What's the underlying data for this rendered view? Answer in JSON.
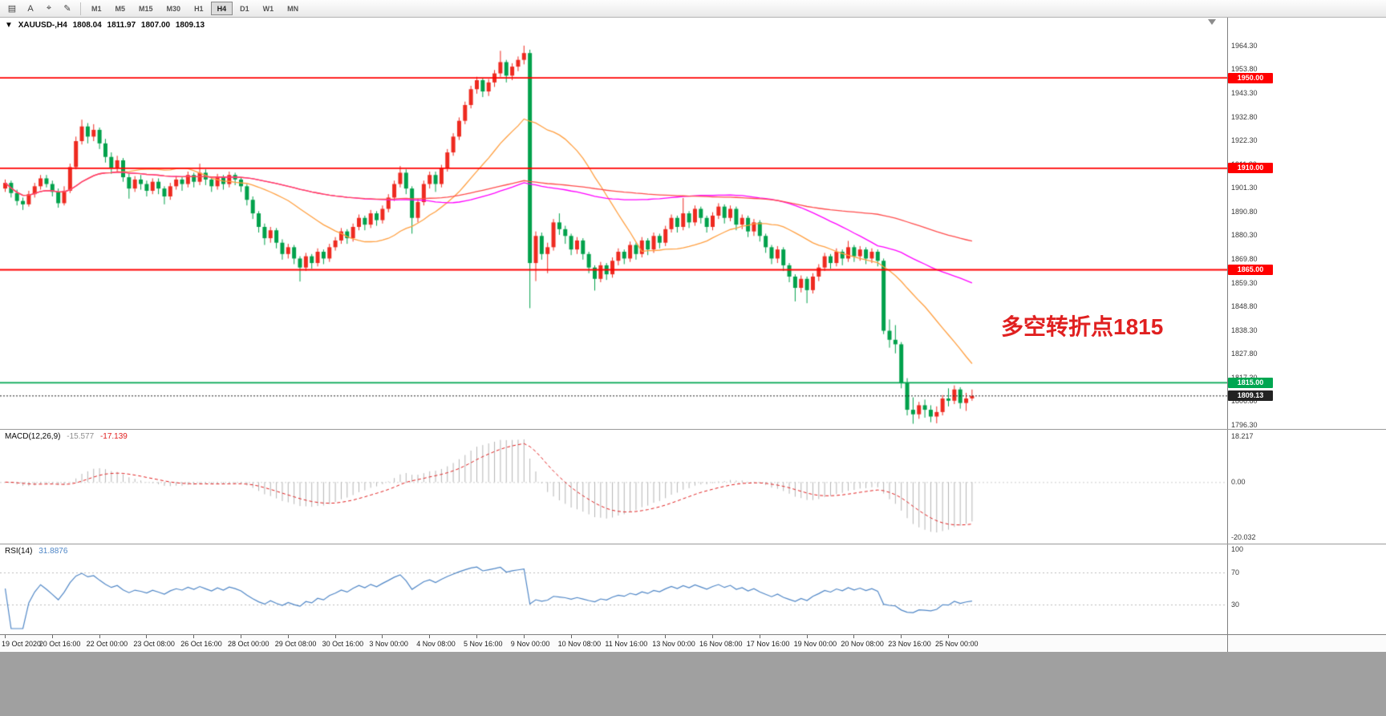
{
  "toolbar": {
    "tools": [
      {
        "name": "chart-window-icon",
        "glyph": "▤"
      },
      {
        "name": "text-label-tool",
        "glyph": "A"
      },
      {
        "name": "crosshair-tool",
        "glyph": "⌖"
      },
      {
        "name": "draw-tool",
        "glyph": "✎"
      }
    ],
    "timeframes": [
      "M1",
      "M5",
      "M15",
      "M30",
      "H1",
      "H4",
      "D1",
      "W1",
      "MN"
    ],
    "active_timeframe": "H4"
  },
  "symbol_header": {
    "toggle_glyph": "▼",
    "symbol": "XAUUSD-,H4",
    "open": "1808.04",
    "high": "1811.97",
    "low": "1807.00",
    "close": "1809.13"
  },
  "annotation": {
    "text": "多空转折点1815",
    "color": "#e02020"
  },
  "macd_panel": {
    "label": "MACD(12,26,9)",
    "main_value": "-15.577",
    "signal_value": "-17.139",
    "ticks": [
      "18.217",
      "0.00",
      "-20.032"
    ],
    "main_color": "#b4b4b4",
    "signal_color": "#e02020"
  },
  "rsi_panel": {
    "label": "RSI(14)",
    "value": "31.8876",
    "ticks": [
      100,
      70,
      30
    ],
    "levels": [
      70,
      30
    ],
    "line_color": "#4f86c6"
  },
  "time_axis": {
    "labels": [
      "19 Oct 2020",
      "20 Oct 16:00",
      "22 Oct 00:00",
      "23 Oct 08:00",
      "26 Oct 16:00",
      "28 Oct 00:00",
      "29 Oct 08:00",
      "30 Oct 16:00",
      "3 Nov 00:00",
      "4 Nov 08:00",
      "5 Nov 16:00",
      "9 Nov 00:00",
      "10 Nov 08:00",
      "11 Nov 16:00",
      "13 Nov 00:00",
      "16 Nov 08:00",
      "17 Nov 16:00",
      "19 Nov 00:00",
      "20 Nov 08:00",
      "23 Nov 16:00",
      "25 Nov 00:00"
    ]
  },
  "chart_data": {
    "type": "candlestick",
    "symbol": "XAUUSD-",
    "timeframe": "H4",
    "title": "XAUUSD-,H4 1808.04 1811.97 1807.00 1809.13",
    "price_range": [
      1794.5,
      1976.7
    ],
    "y_ticks": [
      1964.3,
      1953.8,
      1943.3,
      1932.8,
      1922.3,
      1911.8,
      1901.3,
      1890.8,
      1880.3,
      1869.8,
      1859.3,
      1848.8,
      1838.3,
      1827.8,
      1817.3,
      1806.8,
      1796.3
    ],
    "hlines": [
      {
        "price": 1950.0,
        "label": "1950.00",
        "color": "#ff0000"
      },
      {
        "price": 1910.0,
        "label": "1910.00",
        "color": "#ff0000"
      },
      {
        "price": 1865.0,
        "label": "1865.00",
        "color": "#ff0000"
      },
      {
        "price": 1815.0,
        "label": "1815.00",
        "color": "#00a651"
      }
    ],
    "bid": {
      "price": 1809.13,
      "label": "1809.13",
      "color": "#222222"
    },
    "colors": {
      "bull": "#ee2a20",
      "bear": "#00a14b"
    },
    "moving_averages": [
      {
        "period": 20,
        "color": "#ff9f40"
      },
      {
        "period": 60,
        "color": "#ff00ff"
      },
      {
        "period": 120,
        "color": "#ff4d4d"
      }
    ],
    "macd": {
      "fast": 12,
      "slow": 26,
      "signal": 9
    },
    "rsi": {
      "period": 14
    },
    "layout": {
      "x_start": 6,
      "x_step": 7.35,
      "x_label_step": 8,
      "legend_position": "none",
      "grid": false
    },
    "candles": [
      [
        1901.0,
        1905.0,
        1899.5,
        1903.5
      ],
      [
        1903.5,
        1904.5,
        1897.0,
        1899.0
      ],
      [
        1899.0,
        1900.5,
        1893.5,
        1895.5
      ],
      [
        1895.5,
        1897.0,
        1891.5,
        1894.0
      ],
      [
        1894.0,
        1900.0,
        1893.0,
        1898.5
      ],
      [
        1898.5,
        1903.5,
        1897.0,
        1902.0
      ],
      [
        1902.0,
        1907.0,
        1900.5,
        1905.5
      ],
      [
        1905.5,
        1907.0,
        1901.5,
        1903.0
      ],
      [
        1903.0,
        1904.5,
        1897.5,
        1899.5
      ],
      [
        1899.5,
        1901.0,
        1892.5,
        1894.5
      ],
      [
        1894.5,
        1902.0,
        1893.5,
        1900.0
      ],
      [
        1900.0,
        1912.0,
        1899.0,
        1910.5
      ],
      [
        1910.5,
        1924.0,
        1909.5,
        1922.0
      ],
      [
        1922.0,
        1931.5,
        1920.5,
        1928.5
      ],
      [
        1928.5,
        1930.0,
        1921.0,
        1924.0
      ],
      [
        1924.0,
        1929.5,
        1922.0,
        1927.0
      ],
      [
        1927.0,
        1928.0,
        1918.5,
        1921.0
      ],
      [
        1921.0,
        1923.0,
        1912.5,
        1915.0
      ],
      [
        1915.0,
        1917.0,
        1907.5,
        1910.0
      ],
      [
        1910.0,
        1915.5,
        1908.5,
        1913.5
      ],
      [
        1913.5,
        1914.5,
        1904.0,
        1906.0
      ],
      [
        1906.0,
        1907.5,
        1896.5,
        1901.0
      ],
      [
        1901.0,
        1906.5,
        1899.5,
        1905.0
      ],
      [
        1905.0,
        1907.0,
        1900.5,
        1903.0
      ],
      [
        1903.0,
        1904.5,
        1897.5,
        1900.0
      ],
      [
        1900.0,
        1905.5,
        1898.5,
        1904.0
      ],
      [
        1904.0,
        1905.5,
        1898.5,
        1901.0
      ],
      [
        1901.0,
        1902.0,
        1894.0,
        1897.5
      ],
      [
        1897.5,
        1903.5,
        1896.0,
        1902.0
      ],
      [
        1902.0,
        1906.5,
        1900.5,
        1905.0
      ],
      [
        1905.0,
        1906.0,
        1900.0,
        1903.0
      ],
      [
        1903.0,
        1908.5,
        1901.5,
        1907.0
      ],
      [
        1907.0,
        1908.0,
        1901.5,
        1904.0
      ],
      [
        1904.0,
        1912.0,
        1902.5,
        1908.0
      ],
      [
        1908.0,
        1909.5,
        1902.5,
        1905.0
      ],
      [
        1905.0,
        1906.0,
        1899.5,
        1902.0
      ],
      [
        1902.0,
        1907.5,
        1900.5,
        1906.0
      ],
      [
        1906.0,
        1907.0,
        1900.5,
        1903.0
      ],
      [
        1903.0,
        1908.5,
        1901.5,
        1907.0
      ],
      [
        1907.0,
        1908.0,
        1902.5,
        1905.0
      ],
      [
        1905.0,
        1906.0,
        1899.5,
        1902.0
      ],
      [
        1902.0,
        1903.0,
        1893.5,
        1896.0
      ],
      [
        1896.0,
        1897.5,
        1887.5,
        1890.0
      ],
      [
        1890.0,
        1891.0,
        1881.5,
        1884.0
      ],
      [
        1884.0,
        1885.5,
        1876.0,
        1879.0
      ],
      [
        1879.0,
        1884.0,
        1877.0,
        1882.5
      ],
      [
        1882.5,
        1883.5,
        1874.5,
        1877.0
      ],
      [
        1877.0,
        1878.5,
        1869.5,
        1872.0
      ],
      [
        1872.0,
        1876.5,
        1870.0,
        1875.0
      ],
      [
        1875.0,
        1876.0,
        1867.5,
        1870.0
      ],
      [
        1870.0,
        1871.0,
        1859.8,
        1866.0
      ],
      [
        1866.0,
        1872.5,
        1864.5,
        1871.0
      ],
      [
        1871.0,
        1872.0,
        1865.5,
        1868.0
      ],
      [
        1868.0,
        1874.5,
        1866.5,
        1873.0
      ],
      [
        1873.0,
        1874.0,
        1867.5,
        1870.0
      ],
      [
        1870.0,
        1876.5,
        1868.5,
        1875.0
      ],
      [
        1875.0,
        1879.5,
        1873.5,
        1878.0
      ],
      [
        1878.0,
        1883.5,
        1876.5,
        1882.0
      ],
      [
        1882.0,
        1883.0,
        1876.5,
        1879.0
      ],
      [
        1879.0,
        1885.5,
        1877.5,
        1884.0
      ],
      [
        1884.0,
        1889.5,
        1882.5,
        1888.0
      ],
      [
        1888.0,
        1889.0,
        1882.5,
        1885.0
      ],
      [
        1885.0,
        1891.5,
        1883.5,
        1890.0
      ],
      [
        1890.0,
        1891.0,
        1884.5,
        1887.0
      ],
      [
        1887.0,
        1893.5,
        1885.5,
        1892.0
      ],
      [
        1892.0,
        1898.5,
        1890.5,
        1897.0
      ],
      [
        1897.0,
        1904.5,
        1895.5,
        1903.0
      ],
      [
        1903.0,
        1911.0,
        1901.5,
        1908.0
      ],
      [
        1908.0,
        1909.5,
        1898.5,
        1901.0
      ],
      [
        1901.0,
        1902.0,
        1881.0,
        1888.0
      ],
      [
        1888.0,
        1896.5,
        1886.0,
        1895.0
      ],
      [
        1895.0,
        1904.5,
        1893.5,
        1903.0
      ],
      [
        1903.0,
        1908.5,
        1901.0,
        1907.0
      ],
      [
        1907.0,
        1908.5,
        1899.5,
        1903.0
      ],
      [
        1903.0,
        1911.5,
        1901.5,
        1910.0
      ],
      [
        1910.0,
        1918.5,
        1908.5,
        1917.0
      ],
      [
        1917.0,
        1925.5,
        1915.5,
        1924.0
      ],
      [
        1924.0,
        1932.5,
        1922.5,
        1931.0
      ],
      [
        1931.0,
        1939.5,
        1929.5,
        1938.0
      ],
      [
        1938.0,
        1946.5,
        1936.5,
        1945.0
      ],
      [
        1945.0,
        1950.5,
        1943.0,
        1949.0
      ],
      [
        1949.0,
        1950.0,
        1941.5,
        1944.0
      ],
      [
        1944.0,
        1949.5,
        1942.0,
        1948.0
      ],
      [
        1948.0,
        1953.5,
        1946.0,
        1952.0
      ],
      [
        1952.0,
        1962.0,
        1950.5,
        1957.0
      ],
      [
        1957.0,
        1958.0,
        1948.0,
        1951.0
      ],
      [
        1951.0,
        1956.5,
        1949.0,
        1955.0
      ],
      [
        1955.0,
        1959.5,
        1953.0,
        1958.0
      ],
      [
        1958.0,
        1964.3,
        1956.0,
        1961.0
      ],
      [
        1961.0,
        1962.5,
        1848.0,
        1868.0
      ],
      [
        1868.0,
        1882.0,
        1860.0,
        1880.0
      ],
      [
        1880.0,
        1881.5,
        1869.5,
        1872.0
      ],
      [
        1872.0,
        1877.0,
        1863.5,
        1875.0
      ],
      [
        1875.0,
        1887.5,
        1873.5,
        1886.0
      ],
      [
        1886.0,
        1890.0,
        1880.5,
        1883.0
      ],
      [
        1883.0,
        1884.5,
        1876.5,
        1880.0
      ],
      [
        1880.0,
        1881.0,
        1871.5,
        1874.0
      ],
      [
        1874.0,
        1879.5,
        1872.0,
        1878.0
      ],
      [
        1878.0,
        1879.0,
        1869.5,
        1872.0
      ],
      [
        1872.0,
        1873.0,
        1863.5,
        1866.0
      ],
      [
        1866.0,
        1867.0,
        1855.8,
        1861.0
      ],
      [
        1861.0,
        1868.5,
        1859.5,
        1867.0
      ],
      [
        1867.0,
        1868.0,
        1860.5,
        1863.0
      ],
      [
        1863.0,
        1870.5,
        1861.5,
        1869.0
      ],
      [
        1869.0,
        1874.5,
        1867.0,
        1873.0
      ],
      [
        1873.0,
        1874.0,
        1867.5,
        1870.0
      ],
      [
        1870.0,
        1877.5,
        1868.5,
        1876.0
      ],
      [
        1876.0,
        1877.0,
        1869.5,
        1872.0
      ],
      [
        1872.0,
        1879.5,
        1870.5,
        1878.0
      ],
      [
        1878.0,
        1879.0,
        1871.5,
        1874.0
      ],
      [
        1874.0,
        1881.5,
        1872.5,
        1880.0
      ],
      [
        1880.0,
        1881.0,
        1874.5,
        1877.0
      ],
      [
        1877.0,
        1884.5,
        1875.5,
        1883.0
      ],
      [
        1883.0,
        1889.5,
        1881.5,
        1888.0
      ],
      [
        1888.0,
        1889.0,
        1881.5,
        1884.0
      ],
      [
        1884.0,
        1896.8,
        1882.5,
        1890.0
      ],
      [
        1890.0,
        1891.0,
        1883.5,
        1886.0
      ],
      [
        1886.0,
        1893.5,
        1884.5,
        1892.0
      ],
      [
        1892.0,
        1893.0,
        1885.5,
        1888.0
      ],
      [
        1888.0,
        1889.0,
        1881.5,
        1884.0
      ],
      [
        1884.0,
        1890.5,
        1882.5,
        1889.0
      ],
      [
        1889.0,
        1894.5,
        1887.5,
        1893.0
      ],
      [
        1893.0,
        1894.0,
        1885.5,
        1888.0
      ],
      [
        1888.0,
        1893.5,
        1886.5,
        1892.0
      ],
      [
        1892.0,
        1893.0,
        1882.5,
        1885.0
      ],
      [
        1885.0,
        1889.5,
        1883.0,
        1888.0
      ],
      [
        1888.0,
        1889.0,
        1879.5,
        1882.0
      ],
      [
        1882.0,
        1887.5,
        1880.0,
        1886.0
      ],
      [
        1886.0,
        1887.0,
        1877.5,
        1880.0
      ],
      [
        1880.0,
        1881.0,
        1872.5,
        1875.0
      ],
      [
        1875.0,
        1876.0,
        1867.5,
        1870.0
      ],
      [
        1870.0,
        1875.5,
        1868.0,
        1874.0
      ],
      [
        1874.0,
        1875.0,
        1864.5,
        1867.0
      ],
      [
        1867.0,
        1868.0,
        1859.5,
        1862.0
      ],
      [
        1862.0,
        1863.0,
        1851.0,
        1857.0
      ],
      [
        1857.0,
        1862.5,
        1855.0,
        1861.0
      ],
      [
        1861.0,
        1862.0,
        1850.2,
        1856.0
      ],
      [
        1856.0,
        1863.5,
        1854.5,
        1862.0
      ],
      [
        1862.0,
        1867.5,
        1860.0,
        1866.0
      ],
      [
        1866.0,
        1872.5,
        1864.5,
        1871.0
      ],
      [
        1871.0,
        1872.0,
        1865.5,
        1868.0
      ],
      [
        1868.0,
        1874.5,
        1866.5,
        1873.0
      ],
      [
        1873.0,
        1874.0,
        1867.0,
        1870.0
      ],
      [
        1870.0,
        1877.8,
        1868.5,
        1875.0
      ],
      [
        1875.0,
        1876.0,
        1868.5,
        1871.0
      ],
      [
        1871.0,
        1875.5,
        1869.0,
        1874.0
      ],
      [
        1874.0,
        1875.0,
        1867.5,
        1870.0
      ],
      [
        1870.0,
        1874.5,
        1868.0,
        1873.0
      ],
      [
        1873.0,
        1874.0,
        1866.5,
        1869.0
      ],
      [
        1869.0,
        1870.0,
        1836.5,
        1838.0
      ],
      [
        1838.0,
        1843.0,
        1830.5,
        1834.0
      ],
      [
        1834.0,
        1840.5,
        1828.0,
        1832.0
      ],
      [
        1832.0,
        1833.0,
        1812.5,
        1815.0
      ],
      [
        1815.0,
        1817.0,
        1800.5,
        1803.0
      ],
      [
        1803.0,
        1808.5,
        1796.8,
        1801.0
      ],
      [
        1801.0,
        1806.5,
        1799.0,
        1805.0
      ],
      [
        1805.0,
        1807.5,
        1799.5,
        1803.0
      ],
      [
        1803.0,
        1805.0,
        1797.5,
        1800.0
      ],
      [
        1800.0,
        1804.5,
        1797.0,
        1802.0
      ],
      [
        1802.0,
        1809.5,
        1800.5,
        1808.0
      ],
      [
        1808.0,
        1812.5,
        1804.5,
        1807.0
      ],
      [
        1807.0,
        1813.8,
        1805.5,
        1812.0
      ],
      [
        1812.0,
        1813.0,
        1803.5,
        1806.0
      ],
      [
        1806.0,
        1810.5,
        1802.5,
        1808.0
      ],
      [
        1808.04,
        1811.97,
        1807.0,
        1809.13
      ]
    ]
  }
}
